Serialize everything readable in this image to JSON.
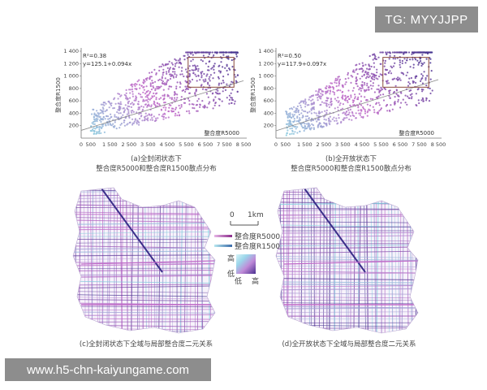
{
  "watermark_tag": "TG: MYYJJPP",
  "watermark_url": "www.h5-chn-kaiyungame.com",
  "colors": {
    "low": "#7fd6e0",
    "mid": "#c06ac8",
    "high": "#3b2f8a",
    "frame": "#8a4a3a",
    "line": "#777777"
  },
  "chart_data": [
    {
      "type": "scatter",
      "title": "(a)全封闭状态下",
      "subtitle": "整合度R5000和整合度R1500散点分布",
      "xlabel": "整合度R5000",
      "ylabel": "整合度R1500",
      "xlim": [
        0,
        8500
      ],
      "ylim": [
        0,
        1400
      ],
      "xticks": [
        "0",
        "500",
        "1 500",
        "2 500",
        "3 500",
        "4 500",
        "5 500",
        "6 500",
        "7 500",
        "8 500"
      ],
      "yticks": [
        "200",
        "400",
        "600",
        "800",
        "1 000",
        "1 200",
        "1 400"
      ],
      "r2": "R²=0.38",
      "equation": "y=125.1+0.094x",
      "regression": {
        "intercept": 125.1,
        "slope": 0.094
      },
      "highlight_box": {
        "x": [
          5600,
          8000
        ],
        "y": [
          820,
          1300
        ]
      }
    },
    {
      "type": "scatter",
      "title": "(b)全开放状态下",
      "subtitle": "整合度R5000和整合度R1500散点分布",
      "xlabel": "整合度R5000",
      "ylabel": "整合度R1500",
      "xlim": [
        0,
        8500
      ],
      "ylim": [
        0,
        1400
      ],
      "xticks": [
        "0",
        "500",
        "1 500",
        "2 500",
        "3 500",
        "4 500",
        "5 500",
        "6 500",
        "7 500",
        "8 500"
      ],
      "yticks": [
        "200",
        "400",
        "600",
        "800",
        "1 000",
        "1 200",
        "1 400"
      ],
      "r2": "R²=0.50",
      "equation": "y=117.9+0.097x",
      "regression": {
        "intercept": 117.9,
        "slope": 0.097
      },
      "highlight_box": {
        "x": [
          5600,
          8000
        ],
        "y": [
          820,
          1300
        ]
      }
    }
  ],
  "maps": {
    "caption_c": "(c)全封闭状态下全域与局部整合度二元关系",
    "caption_d": "(d)全开放状态下全域与局部整合度二元关系",
    "scale_label": "1km",
    "scale_zero": "0",
    "legend_r5000": "整合度R5000",
    "legend_r1500": "整合度R1500",
    "legend_high_y": "高",
    "legend_low_y": "低",
    "legend_low_x": "低",
    "legend_high_x": "高"
  }
}
